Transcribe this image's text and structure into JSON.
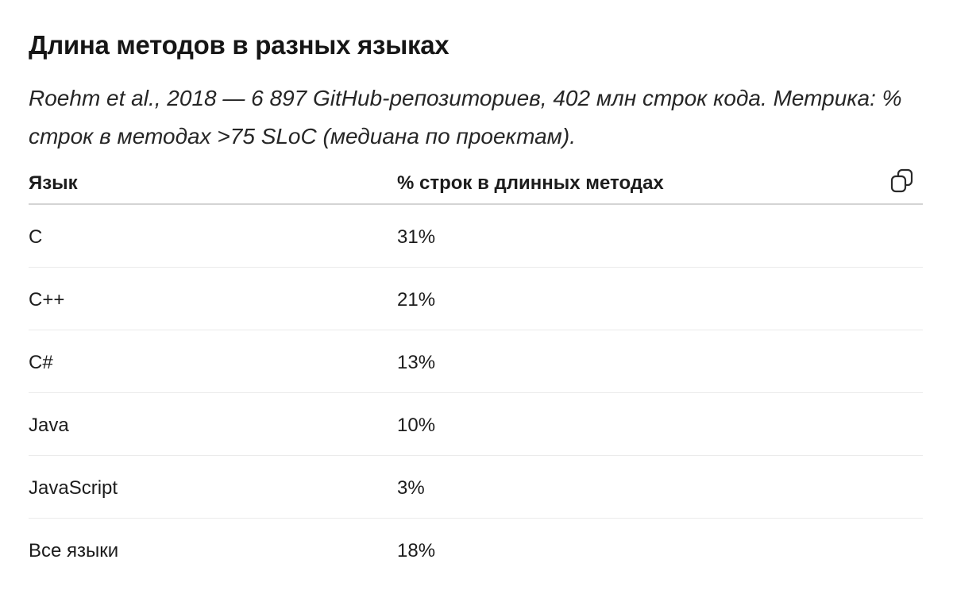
{
  "title": "Длина методов в разных языках",
  "subtitle": "Roehm et al., 2018 — 6 897 GitHub-репозиториев, 402 млн строк кода. Метрика: % строк в методах >75 SLoC (медиана по проектам).",
  "table": {
    "headers": {
      "language": "Язык",
      "percent": "% строк в длинных методах"
    },
    "copy_icon": "copy-icon",
    "rows": [
      {
        "language": "C",
        "percent": "31%"
      },
      {
        "language": "C++",
        "percent": "21%"
      },
      {
        "language": "C#",
        "percent": "13%"
      },
      {
        "language": "Java",
        "percent": "10%"
      },
      {
        "language": "JavaScript",
        "percent": "3%"
      },
      {
        "language": "Все языки",
        "percent": "18%"
      }
    ]
  }
}
